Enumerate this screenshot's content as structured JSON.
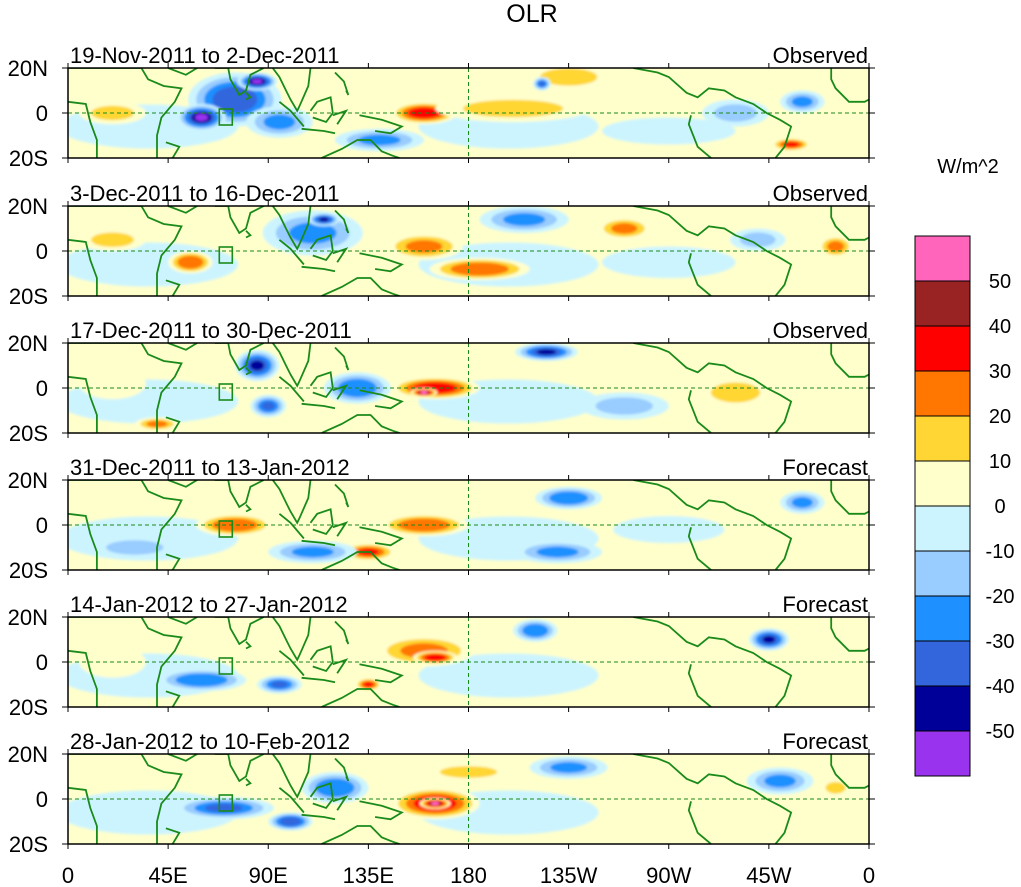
{
  "chart_data": {
    "type": "heatmap",
    "title": "OLR",
    "units_label": "W/m^2",
    "x_ticks": [
      "0",
      "45E",
      "90E",
      "135E",
      "180",
      "135W",
      "90W",
      "45W",
      "0"
    ],
    "x_tick_lon": [
      0,
      45,
      90,
      135,
      180,
      225,
      270,
      315,
      360
    ],
    "y_ticks": [
      "20N",
      "0",
      "20S"
    ],
    "y_tick_lat": [
      20,
      0,
      -20
    ],
    "lon_range": [
      0,
      360
    ],
    "lat_range": [
      -20,
      20
    ],
    "colorbar": {
      "levels": [
        -50,
        -40,
        -30,
        -20,
        -10,
        0,
        10,
        20,
        30,
        40,
        50
      ],
      "level_labels": [
        "50",
        "40",
        "30",
        "20",
        "10",
        "0",
        "-10",
        "-20",
        "-30",
        "-40",
        "-50"
      ],
      "colors_low_to_high": [
        "#9933ee",
        "#000099",
        "#3366dd",
        "#1e90ff",
        "#99ccff",
        "#ccf4ff",
        "#ffffcc",
        "#ffd633",
        "#ff7700",
        "#ff0000",
        "#992222",
        "#ff66bb"
      ]
    },
    "panels": [
      {
        "period": "19-Nov-2011 to 2-Dec-2011",
        "kind": "Observed",
        "anomalies": [
          {
            "lon": 75,
            "lat": 6,
            "w": 42,
            "h": 24,
            "v": -38
          },
          {
            "lon": 60,
            "lat": -2,
            "w": 22,
            "h": 12,
            "v": -50
          },
          {
            "lon": 95,
            "lat": -4,
            "w": 30,
            "h": 14,
            "v": -25
          },
          {
            "lon": 85,
            "lat": 14,
            "w": 18,
            "h": 8,
            "v": -50
          },
          {
            "lon": 160,
            "lat": 0,
            "w": 30,
            "h": 10,
            "v": 38
          },
          {
            "lon": 200,
            "lat": 2,
            "w": 70,
            "h": 12,
            "v": 12
          },
          {
            "lon": 225,
            "lat": 16,
            "w": 40,
            "h": 12,
            "v": 15
          },
          {
            "lon": 213,
            "lat": 13,
            "w": 8,
            "h": 6,
            "v": -35
          },
          {
            "lon": 140,
            "lat": -12,
            "w": 40,
            "h": 10,
            "v": -22
          },
          {
            "lon": 20,
            "lat": 0,
            "w": 30,
            "h": 10,
            "v": 12
          },
          {
            "lon": 325,
            "lat": -14,
            "w": 18,
            "h": 6,
            "v": 32
          },
          {
            "lon": 300,
            "lat": 0,
            "w": 30,
            "h": 12,
            "v": -15
          },
          {
            "lon": 330,
            "lat": 5,
            "w": 20,
            "h": 10,
            "v": -25
          },
          {
            "lon": 270,
            "lat": -8,
            "w": 60,
            "h": 12,
            "v": -8
          }
        ]
      },
      {
        "period": "3-Dec-2011 to 16-Dec-2011",
        "kind": "Observed",
        "anomalies": [
          {
            "lon": 55,
            "lat": -5,
            "w": 20,
            "h": 10,
            "v": 30
          },
          {
            "lon": 110,
            "lat": 8,
            "w": 45,
            "h": 20,
            "v": -25
          },
          {
            "lon": 115,
            "lat": 14,
            "w": 14,
            "h": 6,
            "v": -45
          },
          {
            "lon": 205,
            "lat": 14,
            "w": 40,
            "h": 12,
            "v": -25
          },
          {
            "lon": 160,
            "lat": 2,
            "w": 35,
            "h": 12,
            "v": 25
          },
          {
            "lon": 185,
            "lat": -8,
            "w": 45,
            "h": 10,
            "v": 30
          },
          {
            "lon": 250,
            "lat": 10,
            "w": 25,
            "h": 10,
            "v": 22
          },
          {
            "lon": 345,
            "lat": 2,
            "w": 16,
            "h": 10,
            "v": 22
          },
          {
            "lon": 270,
            "lat": -5,
            "w": 60,
            "h": 14,
            "v": -8
          },
          {
            "lon": 20,
            "lat": 5,
            "w": 30,
            "h": 10,
            "v": 12
          },
          {
            "lon": 310,
            "lat": 5,
            "w": 25,
            "h": 10,
            "v": -12
          }
        ]
      },
      {
        "period": "17-Dec-2011 to 30-Dec-2011",
        "kind": "Observed",
        "anomalies": [
          {
            "lon": 85,
            "lat": 10,
            "w": 20,
            "h": 14,
            "v": -42
          },
          {
            "lon": 90,
            "lat": -8,
            "w": 16,
            "h": 10,
            "v": -35
          },
          {
            "lon": 130,
            "lat": 0,
            "w": 30,
            "h": 14,
            "v": -28
          },
          {
            "lon": 165,
            "lat": 0,
            "w": 40,
            "h": 10,
            "v": 38
          },
          {
            "lon": 160,
            "lat": -2,
            "w": 12,
            "h": 4,
            "v": 52
          },
          {
            "lon": 215,
            "lat": 16,
            "w": 28,
            "h": 8,
            "v": -40
          },
          {
            "lon": 40,
            "lat": -16,
            "w": 20,
            "h": 6,
            "v": 25
          },
          {
            "lon": 300,
            "lat": -2,
            "w": 30,
            "h": 12,
            "v": 20
          },
          {
            "lon": 20,
            "lat": 2,
            "w": 30,
            "h": 14,
            "v": 10
          },
          {
            "lon": 250,
            "lat": -8,
            "w": 40,
            "h": 12,
            "v": -10
          }
        ]
      },
      {
        "period": "31-Dec-2011 to 13-Jan-2012",
        "kind": "Forecast",
        "anomalies": [
          {
            "lon": 75,
            "lat": 0,
            "w": 35,
            "h": 10,
            "v": 28
          },
          {
            "lon": 160,
            "lat": 0,
            "w": 40,
            "h": 10,
            "v": 28
          },
          {
            "lon": 135,
            "lat": -12,
            "w": 25,
            "h": 8,
            "v": 32
          },
          {
            "lon": 110,
            "lat": -12,
            "w": 40,
            "h": 10,
            "v": -22
          },
          {
            "lon": 225,
            "lat": 12,
            "w": 30,
            "h": 10,
            "v": -28
          },
          {
            "lon": 220,
            "lat": -12,
            "w": 40,
            "h": 10,
            "v": -25
          },
          {
            "lon": 330,
            "lat": 10,
            "w": 20,
            "h": 10,
            "v": -20
          },
          {
            "lon": 30,
            "lat": -10,
            "w": 40,
            "h": 10,
            "v": -10
          },
          {
            "lon": 270,
            "lat": -2,
            "w": 50,
            "h": 12,
            "v": -8
          }
        ]
      },
      {
        "period": "14-Jan-2012 to 27-Jan-2012",
        "kind": "Forecast",
        "anomalies": [
          {
            "lon": 160,
            "lat": 5,
            "w": 45,
            "h": 14,
            "v": 25
          },
          {
            "lon": 165,
            "lat": 2,
            "w": 20,
            "h": 6,
            "v": 38
          },
          {
            "lon": 60,
            "lat": -8,
            "w": 40,
            "h": 10,
            "v": -28
          },
          {
            "lon": 95,
            "lat": -10,
            "w": 20,
            "h": 8,
            "v": -32
          },
          {
            "lon": 135,
            "lat": -10,
            "w": 12,
            "h": 6,
            "v": 32
          },
          {
            "lon": 210,
            "lat": 14,
            "w": 20,
            "h": 10,
            "v": -28
          },
          {
            "lon": 315,
            "lat": 10,
            "w": 18,
            "h": 10,
            "v": -42
          },
          {
            "lon": 260,
            "lat": 5,
            "w": 60,
            "h": 14,
            "v": 6
          },
          {
            "lon": 20,
            "lat": 0,
            "w": 30,
            "h": 14,
            "v": 8
          }
        ]
      },
      {
        "period": "28-Jan-2012 to 10-Feb-2012",
        "kind": "Forecast",
        "anomalies": [
          {
            "lon": 165,
            "lat": -2,
            "w": 40,
            "h": 14,
            "v": 42
          },
          {
            "lon": 165,
            "lat": -2,
            "w": 14,
            "h": 5,
            "v": 52
          },
          {
            "lon": 70,
            "lat": -4,
            "w": 45,
            "h": 10,
            "v": -30
          },
          {
            "lon": 100,
            "lat": -10,
            "w": 20,
            "h": 8,
            "v": -38
          },
          {
            "lon": 120,
            "lat": 5,
            "w": 30,
            "h": 14,
            "v": -28
          },
          {
            "lon": 225,
            "lat": 14,
            "w": 35,
            "h": 10,
            "v": -20
          },
          {
            "lon": 320,
            "lat": 8,
            "w": 30,
            "h": 12,
            "v": -20
          },
          {
            "lon": 345,
            "lat": 5,
            "w": 14,
            "h": 8,
            "v": 15
          },
          {
            "lon": 180,
            "lat": 12,
            "w": 40,
            "h": 8,
            "v": 15
          },
          {
            "lon": 20,
            "lat": -5,
            "w": 40,
            "h": 14,
            "v": -8
          }
        ]
      }
    ]
  }
}
